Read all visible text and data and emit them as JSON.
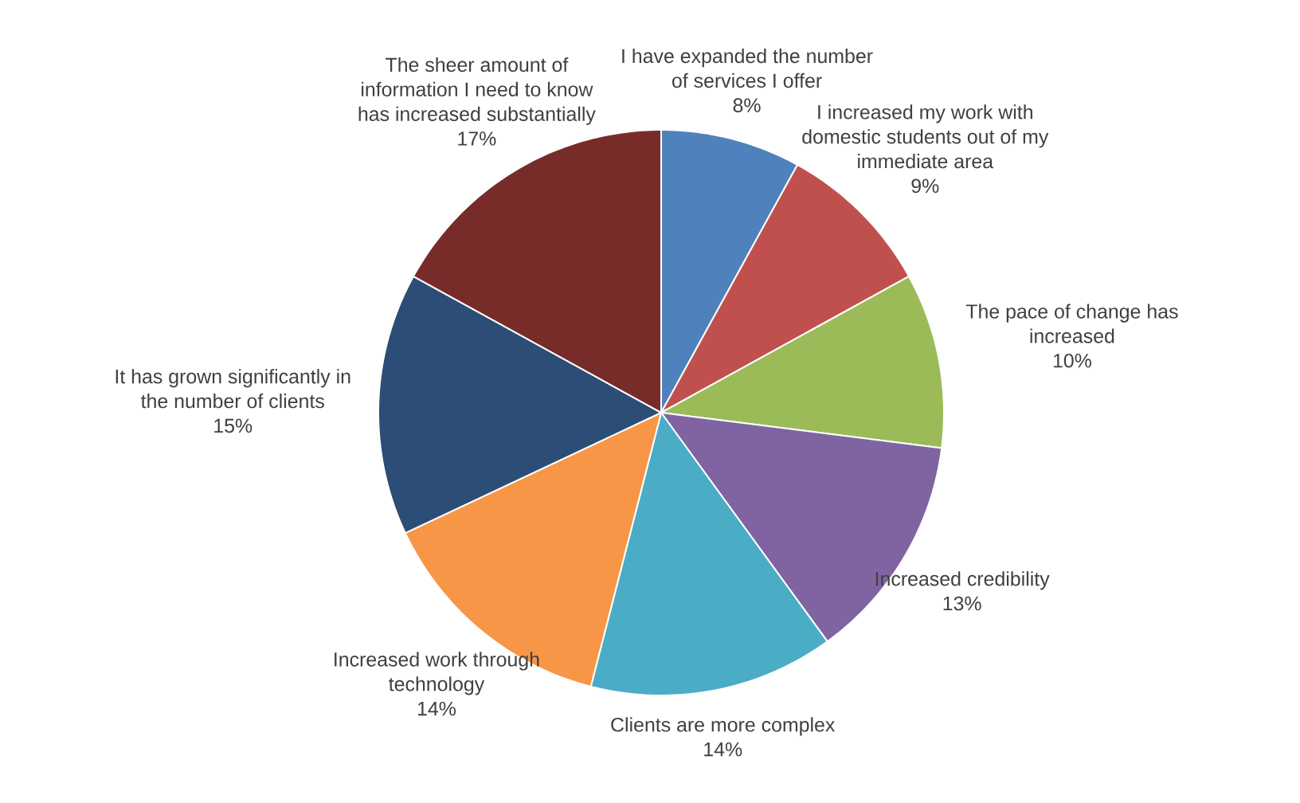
{
  "chart_data": {
    "type": "pie",
    "categories": [
      "I have expanded the number of services I offer",
      "I increased my work with domestic students out of my immediate area",
      "The pace of change has increased",
      "Increased credibility",
      "Clients are more complex",
      "Increased work through technology",
      "It has grown significantly in the number of clients",
      "The sheer amount of information I need to know has increased substantially"
    ],
    "values": [
      8,
      9,
      10,
      13,
      14,
      14,
      15,
      17
    ],
    "value_labels": [
      "8%",
      "9%",
      "10%",
      "13%",
      "14%",
      "14%",
      "15%",
      "17%"
    ],
    "colors": [
      "#4f81bd",
      "#c0504d",
      "#9bbb59",
      "#8064a2",
      "#4bacc6",
      "#f79646",
      "#2c4d75",
      "#772c2a"
    ]
  }
}
